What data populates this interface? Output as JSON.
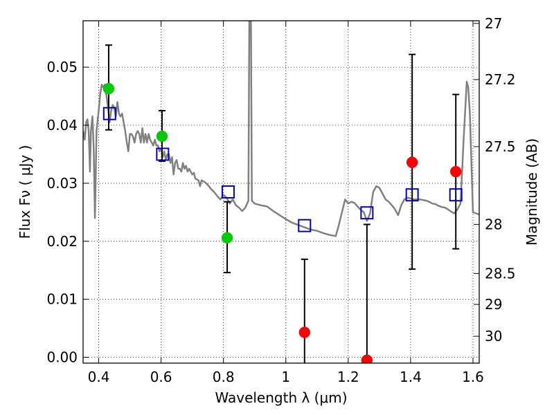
{
  "chart_data": {
    "type": "scatter",
    "xlabel": "Wavelength  λ (μm)",
    "ylabel": "Flux  Fν  ( μJy )",
    "y2label": "Magnitude (AB)",
    "xlim": [
      0.35,
      1.62
    ],
    "ylim": [
      -0.001,
      0.058
    ],
    "grid": true,
    "grid_style": "dotted",
    "x_ticks": [
      0.4,
      0.6,
      0.8,
      1.0,
      1.2,
      1.4,
      1.6
    ],
    "x_tick_labels": [
      "0.4",
      "0.6",
      "0.8",
      "1",
      "1.2",
      "1.4",
      "1.6"
    ],
    "y_ticks": [
      0.0,
      0.01,
      0.02,
      0.03,
      0.04,
      0.05
    ],
    "y_tick_labels": [
      "0.00",
      "0.01",
      "0.02",
      "0.03",
      "0.04",
      "0.05"
    ],
    "y2_ticks": [
      {
        "label": "27",
        "flux": 0.05754
      },
      {
        "label": "27.2",
        "flux": 0.04786
      },
      {
        "label": "27.5",
        "flux": 0.03631
      },
      {
        "label": "28",
        "flux": 0.02291
      },
      {
        "label": "28.5",
        "flux": 0.01445
      },
      {
        "label": "29",
        "flux": 0.00912
      },
      {
        "label": "30",
        "flux": 0.00363
      }
    ],
    "series": [
      {
        "kind": "sed-model-line",
        "color": "#808080",
        "points": [
          [
            0.35,
            0.039
          ],
          [
            0.355,
            0.0375
          ],
          [
            0.36,
            0.0405
          ],
          [
            0.364,
            0.041
          ],
          [
            0.368,
            0.039
          ],
          [
            0.372,
            0.032
          ],
          [
            0.375,
            0.039
          ],
          [
            0.38,
            0.0415
          ],
          [
            0.384,
            0.036
          ],
          [
            0.388,
            0.024
          ],
          [
            0.393,
            0.039
          ],
          [
            0.4,
            0.0425
          ],
          [
            0.405,
            0.0455
          ],
          [
            0.41,
            0.047
          ],
          [
            0.415,
            0.0465
          ],
          [
            0.42,
            0.047
          ],
          [
            0.425,
            0.045
          ],
          [
            0.43,
            0.043
          ],
          [
            0.435,
            0.0405
          ],
          [
            0.44,
            0.0425
          ],
          [
            0.445,
            0.0435
          ],
          [
            0.45,
            0.043
          ],
          [
            0.455,
            0.0415
          ],
          [
            0.46,
            0.044
          ],
          [
            0.465,
            0.042
          ],
          [
            0.47,
            0.0415
          ],
          [
            0.475,
            0.042
          ],
          [
            0.48,
            0.0405
          ],
          [
            0.485,
            0.039
          ],
          [
            0.49,
            0.037
          ],
          [
            0.495,
            0.0355
          ],
          [
            0.5,
            0.0385
          ],
          [
            0.505,
            0.0385
          ],
          [
            0.51,
            0.038
          ],
          [
            0.515,
            0.037
          ],
          [
            0.52,
            0.0385
          ],
          [
            0.525,
            0.039
          ],
          [
            0.53,
            0.0385
          ],
          [
            0.535,
            0.037
          ],
          [
            0.54,
            0.0395
          ],
          [
            0.545,
            0.037
          ],
          [
            0.55,
            0.0385
          ],
          [
            0.555,
            0.037
          ],
          [
            0.56,
            0.0385
          ],
          [
            0.565,
            0.0375
          ],
          [
            0.57,
            0.037
          ],
          [
            0.575,
            0.0365
          ],
          [
            0.58,
            0.0375
          ],
          [
            0.585,
            0.0365
          ],
          [
            0.59,
            0.0365
          ],
          [
            0.595,
            0.0355
          ],
          [
            0.6,
            0.036
          ],
          [
            0.605,
            0.0345
          ],
          [
            0.61,
            0.0355
          ],
          [
            0.615,
            0.034
          ],
          [
            0.62,
            0.035
          ],
          [
            0.625,
            0.035
          ],
          [
            0.63,
            0.0335
          ],
          [
            0.635,
            0.0345
          ],
          [
            0.64,
            0.0315
          ],
          [
            0.645,
            0.0335
          ],
          [
            0.65,
            0.034
          ],
          [
            0.655,
            0.0325
          ],
          [
            0.66,
            0.0325
          ],
          [
            0.665,
            0.032
          ],
          [
            0.67,
            0.0335
          ],
          [
            0.675,
            0.0325
          ],
          [
            0.68,
            0.033
          ],
          [
            0.685,
            0.032
          ],
          [
            0.69,
            0.0325
          ],
          [
            0.7,
            0.0315
          ],
          [
            0.705,
            0.0318
          ],
          [
            0.71,
            0.0308
          ],
          [
            0.72,
            0.0305
          ],
          [
            0.725,
            0.0295
          ],
          [
            0.73,
            0.0305
          ],
          [
            0.74,
            0.0302
          ],
          [
            0.75,
            0.0297
          ],
          [
            0.76,
            0.029
          ],
          [
            0.77,
            0.0285
          ],
          [
            0.78,
            0.0278
          ],
          [
            0.79,
            0.0272
          ],
          [
            0.8,
            0.028
          ],
          [
            0.81,
            0.0275
          ],
          [
            0.82,
            0.0265
          ],
          [
            0.83,
            0.0272
          ],
          [
            0.84,
            0.0262
          ],
          [
            0.85,
            0.0258
          ],
          [
            0.86,
            0.0252
          ],
          [
            0.87,
            0.0258
          ],
          [
            0.88,
            0.027
          ],
          [
            0.883,
            0.06
          ],
          [
            0.888,
            0.06
          ],
          [
            0.891,
            0.027
          ],
          [
            0.9,
            0.0265
          ],
          [
            0.92,
            0.0262
          ],
          [
            0.94,
            0.026
          ],
          [
            0.96,
            0.0252
          ],
          [
            0.98,
            0.0245
          ],
          [
            1.0,
            0.0238
          ],
          [
            1.02,
            0.0232
          ],
          [
            1.04,
            0.0228
          ],
          [
            1.06,
            0.0224
          ],
          [
            1.08,
            0.022
          ],
          [
            1.1,
            0.0218
          ],
          [
            1.12,
            0.0214
          ],
          [
            1.14,
            0.0211
          ],
          [
            1.16,
            0.0209
          ],
          [
            1.17,
            0.0228
          ],
          [
            1.18,
            0.025
          ],
          [
            1.19,
            0.0272
          ],
          [
            1.2,
            0.0265
          ],
          [
            1.21,
            0.0268
          ],
          [
            1.22,
            0.0266
          ],
          [
            1.23,
            0.026
          ],
          [
            1.24,
            0.0254
          ],
          [
            1.25,
            0.025
          ],
          [
            1.26,
            0.0235
          ],
          [
            1.27,
            0.0248
          ],
          [
            1.28,
            0.0285
          ],
          [
            1.29,
            0.0295
          ],
          [
            1.3,
            0.0292
          ],
          [
            1.31,
            0.0282
          ],
          [
            1.32,
            0.0272
          ],
          [
            1.33,
            0.0268
          ],
          [
            1.34,
            0.0262
          ],
          [
            1.35,
            0.0255
          ],
          [
            1.36,
            0.0245
          ],
          [
            1.37,
            0.0262
          ],
          [
            1.38,
            0.0272
          ],
          [
            1.39,
            0.0275
          ],
          [
            1.4,
            0.0274
          ],
          [
            1.41,
            0.0272
          ],
          [
            1.42,
            0.0272
          ],
          [
            1.43,
            0.0272
          ],
          [
            1.44,
            0.0271
          ],
          [
            1.45,
            0.027
          ],
          [
            1.46,
            0.0268
          ],
          [
            1.47,
            0.0265
          ],
          [
            1.48,
            0.0264
          ],
          [
            1.49,
            0.0261
          ],
          [
            1.5,
            0.0259
          ],
          [
            1.51,
            0.0258
          ],
          [
            1.52,
            0.0255
          ],
          [
            1.53,
            0.0251
          ],
          [
            1.54,
            0.0248
          ],
          [
            1.55,
            0.0255
          ],
          [
            1.56,
            0.0265
          ],
          [
            1.57,
            0.0375
          ],
          [
            1.58,
            0.0475
          ],
          [
            1.585,
            0.0465
          ],
          [
            1.59,
            0.042
          ],
          [
            1.6,
            0.025
          ],
          [
            1.61,
            0.0248
          ],
          [
            1.62,
            0.0246
          ]
        ]
      },
      {
        "kind": "model-band-flux",
        "color": "#0000cc",
        "marker": "open-square",
        "points": [
          [
            0.435,
            0.042
          ],
          [
            0.605,
            0.035
          ],
          [
            0.815,
            0.0285
          ],
          [
            1.06,
            0.0227
          ],
          [
            1.26,
            0.0249
          ],
          [
            1.405,
            0.028
          ],
          [
            1.545,
            0.028
          ]
        ]
      },
      {
        "kind": "observed-detection",
        "color": "#00cc00",
        "marker": "filled-circle",
        "points": [
          {
            "x": 0.432,
            "y": 0.0463,
            "err_lo": 0.0392,
            "err_hi": 0.0538
          },
          {
            "x": 0.603,
            "y": 0.0381,
            "err_lo": 0.0338,
            "err_hi": 0.0425
          },
          {
            "x": 0.812,
            "y": 0.0206,
            "err_lo": 0.0146,
            "err_hi": 0.0268
          }
        ]
      },
      {
        "kind": "observed-low-significance",
        "color": "#ff0000",
        "marker": "filled-circle",
        "points": [
          {
            "x": 1.06,
            "y": 0.0043,
            "err_lo": -0.002,
            "err_hi": 0.0169
          },
          {
            "x": 1.26,
            "y": -0.0005,
            "err_lo": -0.002,
            "err_hi": 0.0229
          },
          {
            "x": 1.405,
            "y": 0.0336,
            "err_lo": 0.0152,
            "err_hi": 0.0522
          },
          {
            "x": 1.545,
            "y": 0.032,
            "err_lo": 0.0187,
            "err_hi": 0.0453
          }
        ]
      }
    ]
  }
}
